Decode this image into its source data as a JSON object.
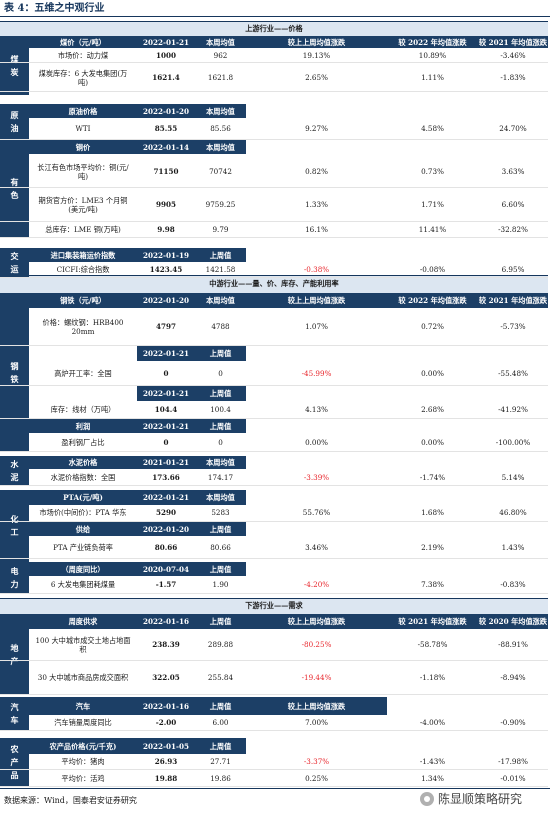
{
  "title": "表 4：五维之中观行业",
  "source_note": "数据来源：Wind，国泰君安证券研究",
  "watermark": "陈显顺策略研究",
  "colors": {
    "header_bg": "#1c3f66",
    "section_bg": "#dce6f1",
    "negative": "#e8262c",
    "text": "#1a1a1a"
  },
  "sections": [
    {
      "title": "上游行业——价格"
    },
    {
      "title": "中游行业——量、价、库存、产能利用率"
    },
    {
      "title": "下游行业——需求"
    }
  ],
  "side_labels": [
    "煤炭",
    "原油",
    "有色",
    "交运",
    "钢铁",
    "水泥",
    "化工",
    "电力",
    "地产",
    "汽车",
    "农产品"
  ],
  "rows": [
    {
      "kind": "hdr",
      "c": [
        "煤价（元/吨）",
        "2022-01-21",
        "本周均值",
        "",
        "较上上周均值涨跌",
        "较 2022 年均值涨跌",
        "较 2021 年均值涨跌"
      ]
    },
    {
      "kind": "data",
      "c": [
        "市场价：动力煤",
        "1000",
        "962",
        "",
        "19.13%",
        "10.89%",
        "-3.46%"
      ]
    },
    {
      "kind": "data",
      "c": [
        "煤炭库存：6 大发电集团(万吨)",
        "1621.4",
        "1621.8",
        "",
        "2.65%",
        "1.11%",
        "-1.83%"
      ]
    },
    {
      "kind": "hdr",
      "c": [
        "原油价格",
        "2022-01-20",
        "本周均值",
        "",
        "",
        "",
        ""
      ]
    },
    {
      "kind": "data",
      "c": [
        "WTI",
        "85.55",
        "85.56",
        "",
        "9.27%",
        "4.58%",
        "24.70%"
      ]
    },
    {
      "kind": "hdr",
      "c": [
        "铜价",
        "2022-01-14",
        "本周均值",
        "",
        "",
        "",
        ""
      ]
    },
    {
      "kind": "data",
      "c": [
        "长江有色市场平均价：铜(元/吨)",
        "71150",
        "70742",
        "",
        "0.82%",
        "0.73%",
        "3.63%"
      ]
    },
    {
      "kind": "data",
      "c": [
        "期货官方价：LME3 个月铜(美元/吨)",
        "9905",
        "9759.25",
        "",
        "1.33%",
        "1.71%",
        "6.60%"
      ]
    },
    {
      "kind": "data",
      "c": [
        "总库存：LME 铜(万吨)",
        "9.98",
        "9.79",
        "",
        "16.1%",
        "11.41%",
        "-32.82%"
      ]
    },
    {
      "kind": "hdr",
      "c": [
        "进口集装箱运价指数",
        "2022-01-19",
        "上周值",
        "",
        "",
        "",
        ""
      ]
    },
    {
      "kind": "data",
      "c": [
        "CICFI:综合指数",
        "1423.45",
        "1421.58",
        "",
        "-0.38%",
        "-0.08%",
        "6.95%"
      ]
    },
    {
      "kind": "hdr",
      "c": [
        "钢铁（元/吨）",
        "2022-01-20",
        "本周均值",
        "",
        "较上上周均值涨跌",
        "较 2022 年均值涨跌",
        "较 2021 年均值涨跌"
      ]
    },
    {
      "kind": "data",
      "c": [
        "价格：螺纹钢：HRB400 20mm",
        "4797",
        "4788",
        "",
        "1.07%",
        "0.72%",
        "-5.73%"
      ]
    },
    {
      "kind": "sub",
      "c": [
        "",
        "2022-01-21",
        "上周值",
        "",
        "",
        "",
        ""
      ]
    },
    {
      "kind": "data",
      "c": [
        "高炉开工率：全国",
        "0",
        "0",
        "",
        "-45.99%",
        "0.00%",
        "-55.48%"
      ]
    },
    {
      "kind": "sub",
      "c": [
        "",
        "2022-01-21",
        "上周值",
        "",
        "",
        "",
        ""
      ]
    },
    {
      "kind": "data",
      "c": [
        "库存：线材（万吨）",
        "104.4",
        "100.4",
        "",
        "4.13%",
        "2.68%",
        "-41.92%"
      ]
    },
    {
      "kind": "sub",
      "c": [
        "利润",
        "2022-01-21",
        "上周值",
        "",
        "",
        "",
        ""
      ]
    },
    {
      "kind": "data",
      "c": [
        "盈利钢厂占比",
        "0",
        "0",
        "",
        "0.00%",
        "0.00%",
        "-100.00%"
      ]
    },
    {
      "kind": "hdr",
      "c": [
        "水泥价格",
        "2021-01-21",
        "本周均值",
        "",
        "",
        "",
        ""
      ]
    },
    {
      "kind": "data",
      "c": [
        "水泥价格指数：全国",
        "173.66",
        "174.17",
        "",
        "-3.39%",
        "-1.74%",
        "5.14%"
      ]
    },
    {
      "kind": "hdr",
      "c": [
        "PTA(元/吨)",
        "2022-01-21",
        "本周均值",
        "",
        "",
        "",
        ""
      ]
    },
    {
      "kind": "data",
      "c": [
        "市场价(中间价)：PTA 华东",
        "5290",
        "5283",
        "",
        "55.76%",
        "1.68%",
        "46.80%"
      ]
    },
    {
      "kind": "sub",
      "c": [
        "供给",
        "2022-01-20",
        "上周值",
        "",
        "",
        "",
        ""
      ]
    },
    {
      "kind": "data",
      "c": [
        "PTA 产业链负荷率",
        "80.66",
        "80.66",
        "",
        "3.46%",
        "2.19%",
        "1.43%"
      ]
    },
    {
      "kind": "sub",
      "c": [
        "（周度同比）",
        "2020-07-04",
        "上周值",
        "",
        "",
        "",
        ""
      ]
    },
    {
      "kind": "data",
      "c": [
        "6 大发电集团耗煤量",
        "-1.57",
        "1.90",
        "",
        "-4.20%",
        "7.38%",
        "-0.83%"
      ]
    },
    {
      "kind": "hdr",
      "c": [
        "周度供求",
        "2022-01-16",
        "上周值",
        "",
        "较上上周均值涨跌",
        "较 2021 年均值涨跌",
        "较 2020 年均值涨跌"
      ]
    },
    {
      "kind": "data",
      "c": [
        "100 大中城市成交土地占地面积",
        "238.39",
        "289.88",
        "",
        "-80.25%",
        "-58.78%",
        "-88.91%"
      ]
    },
    {
      "kind": "data",
      "c": [
        "30 大中城市商品房成交面积",
        "322.05",
        "255.84",
        "",
        "-19.44%",
        "-1.18%",
        "-8.94%"
      ]
    },
    {
      "kind": "hdr",
      "c": [
        "汽车",
        "2022-01-16",
        "上周值",
        "",
        "较上上周均值涨跌",
        "",
        ""
      ]
    },
    {
      "kind": "data",
      "c": [
        "汽车销量周度同比",
        "-2.00",
        "6.00",
        "",
        "7.00%",
        "-4.00%",
        "-0.90%"
      ]
    },
    {
      "kind": "hdr",
      "c": [
        "农产品价格(元/千克)",
        "2022-01-05",
        "上周值",
        "",
        "",
        "",
        ""
      ]
    },
    {
      "kind": "data",
      "c": [
        "平均价：猪肉",
        "26.93",
        "27.71",
        "",
        "-3.37%",
        "-1.43%",
        "-17.98%"
      ]
    },
    {
      "kind": "data",
      "c": [
        "平均价：活鸡",
        "19.88",
        "19.86",
        "",
        "0.25%",
        "1.34%",
        "-0.01%"
      ]
    }
  ]
}
